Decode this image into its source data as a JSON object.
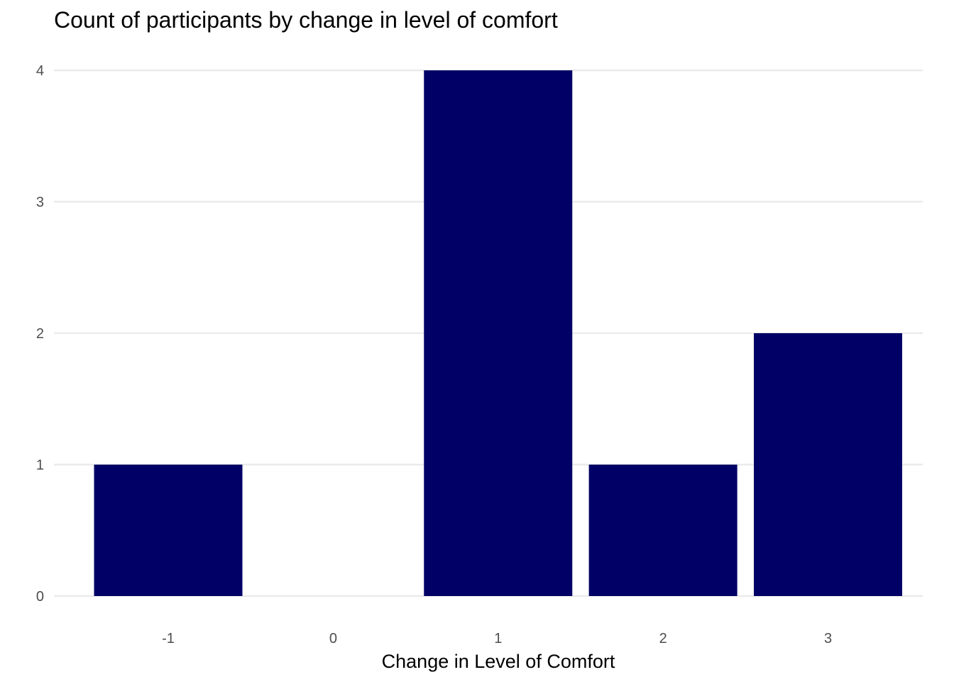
{
  "chart_data": {
    "type": "bar",
    "title": "Count of participants by change in level of comfort",
    "xlabel": "Change in Level of Comfort",
    "ylabel": "",
    "categories": [
      "-1",
      "0",
      "1",
      "2",
      "3"
    ],
    "values": [
      1,
      0,
      4,
      1,
      2
    ],
    "ylim": [
      0,
      4
    ],
    "yticks": [
      0,
      1,
      2,
      3,
      4
    ],
    "grid": true,
    "legend": "none",
    "bar_color": "#000066"
  }
}
